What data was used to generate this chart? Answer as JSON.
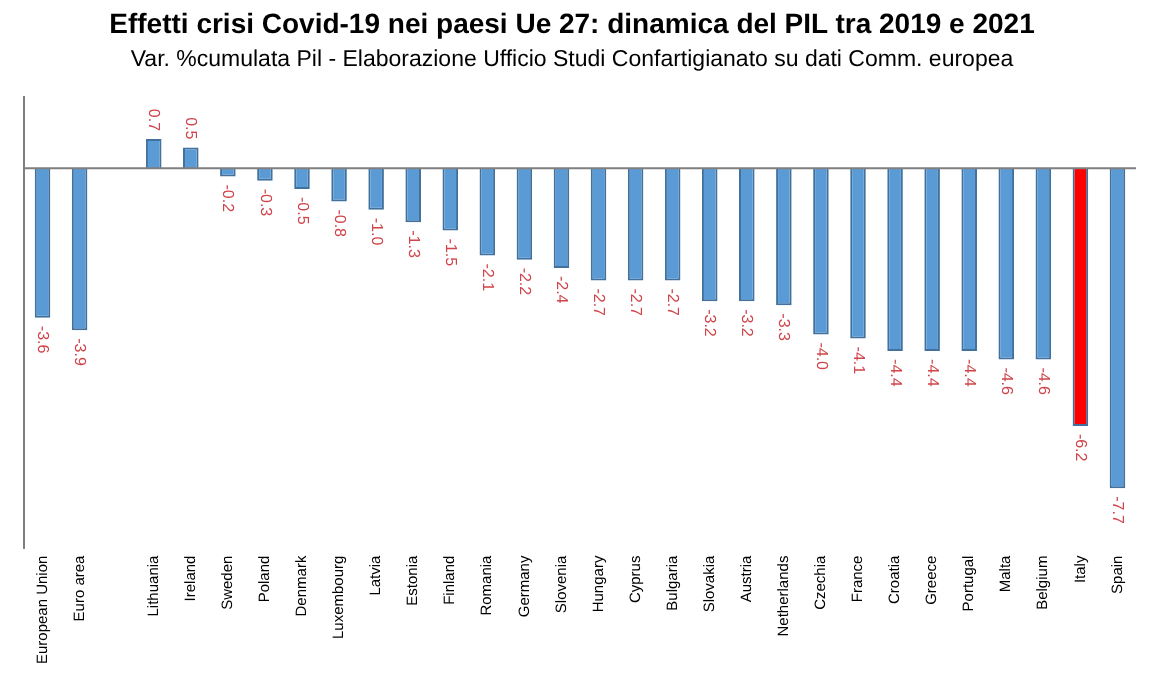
{
  "chart_data": {
    "type": "bar",
    "title": "Effetti crisi Covid-19 nei paesi Ue 27: dinamica del PIL tra 2019 e 2021",
    "subtitle": "Var. %cumulata Pil - Elaborazione Ufficio Studi Confartigianato su dati Comm. europea",
    "categories": [
      "European Union",
      "Euro area",
      null,
      "Lithuania",
      "Ireland",
      "Sweden",
      "Poland",
      "Denmark",
      "Luxembourg",
      "Latvia",
      "Estonia",
      "Finland",
      "Romania",
      "Germany",
      "Slovenia",
      "Hungary",
      "Cyprus",
      "Bulgaria",
      "Slovakia",
      "Austria",
      "Netherlands",
      "Czechia",
      "France",
      "Croatia",
      "Greece",
      "Portugal",
      "Malta",
      "Belgium",
      "Italy",
      "Spain"
    ],
    "values": [
      -3.6,
      -3.9,
      null,
      0.7,
      0.5,
      -0.2,
      -0.3,
      -0.5,
      -0.8,
      -1.0,
      -1.3,
      -1.5,
      -2.1,
      -2.2,
      -2.4,
      -2.7,
      -2.7,
      -2.7,
      -3.2,
      -3.2,
      -3.3,
      -4.0,
      -4.1,
      -4.4,
      -4.4,
      -4.4,
      -4.6,
      -4.6,
      -6.2,
      -7.7
    ],
    "colors": [
      "#5b9bd5",
      "#5b9bd5",
      "#5b9bd5",
      "#5b9bd5",
      "#5b9bd5",
      "#5b9bd5",
      "#5b9bd5",
      "#5b9bd5",
      "#5b9bd5",
      "#5b9bd5",
      "#5b9bd5",
      "#5b9bd5",
      "#5b9bd5",
      "#5b9bd5",
      "#5b9bd5",
      "#5b9bd5",
      "#5b9bd5",
      "#5b9bd5",
      "#5b9bd5",
      "#5b9bd5",
      "#5b9bd5",
      "#5b9bd5",
      "#5b9bd5",
      "#5b9bd5",
      "#5b9bd5",
      "#5b9bd5",
      "#5b9bd5",
      "#5b9bd5",
      "#ff0000",
      "#5b9bd5"
    ],
    "value_labels": [
      "-3.6",
      "-3.9",
      null,
      "0.7",
      "0.5",
      "-0.2",
      "-0.3",
      "-0.5",
      "-0.8",
      "-1.0",
      "-1.3",
      "-1.5",
      "-2.1",
      "-2.2",
      "-2.4",
      "-2.7",
      "-2.7",
      "-2.7",
      "-3.2",
      "-3.2",
      "-3.3",
      "-4.0",
      "-4.1",
      "-4.4",
      "-4.4",
      "-4.4",
      "-4.6",
      "-4.6",
      "-6.2",
      "-7.7"
    ],
    "grid": false,
    "legend": false
  }
}
